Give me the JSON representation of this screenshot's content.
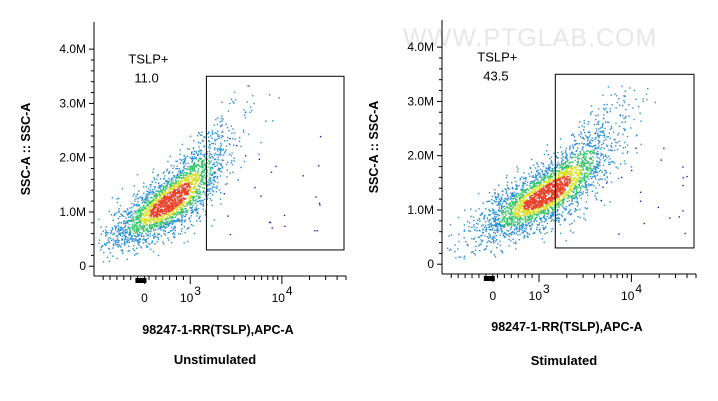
{
  "watermark": "WWW.PTGLAB.COM",
  "chart_data": [
    {
      "type": "scatter",
      "condition": "Unstimulated",
      "xlabel": "98247-1-RR(TSLP),APC-A",
      "ylabel": "SSC-A :: SSC-A",
      "y_ticks": [
        {
          "label": "0",
          "value": 0
        },
        {
          "label": "1.0M",
          "value": 1000000
        },
        {
          "label": "2.0M",
          "value": 2000000
        },
        {
          "label": "3.0M",
          "value": 3000000
        },
        {
          "label": "4.0M",
          "value": 4000000
        }
      ],
      "x_ticks": [
        {
          "label": "0",
          "value": 0
        },
        {
          "label": "10",
          "exp": "3",
          "value": 1000
        },
        {
          "label": "10",
          "exp": "4",
          "value": 10000
        }
      ],
      "gate": {
        "name": "TSLP+",
        "percent": "11.0",
        "x_range": [
          1500,
          50000
        ],
        "y_range": [
          300000,
          3500000
        ]
      },
      "cloud": {
        "center": [
          550,
          1200000
        ],
        "n_points": 2600
      }
    },
    {
      "type": "scatter",
      "condition": "Stimulated",
      "xlabel": "98247-1-RR(TSLP),APC-A",
      "ylabel": "SSC-A :: SSC-A",
      "y_ticks": [
        {
          "label": "0",
          "value": 0
        },
        {
          "label": "1.0M",
          "value": 1000000
        },
        {
          "label": "2.0M",
          "value": 2000000
        },
        {
          "label": "3.0M",
          "value": 3000000
        },
        {
          "label": "4.0M",
          "value": 4000000
        }
      ],
      "x_ticks": [
        {
          "label": "0",
          "value": 0
        },
        {
          "label": "10",
          "exp": "3",
          "value": 1000
        },
        {
          "label": "10",
          "exp": "4",
          "value": 10000
        }
      ],
      "gate": {
        "name": "TSLP+",
        "percent": "43.5",
        "x_range": [
          1500,
          50000
        ],
        "y_range": [
          300000,
          3500000
        ]
      },
      "cloud": {
        "center": [
          1200,
          1300000
        ],
        "n_points": 3000
      }
    }
  ]
}
